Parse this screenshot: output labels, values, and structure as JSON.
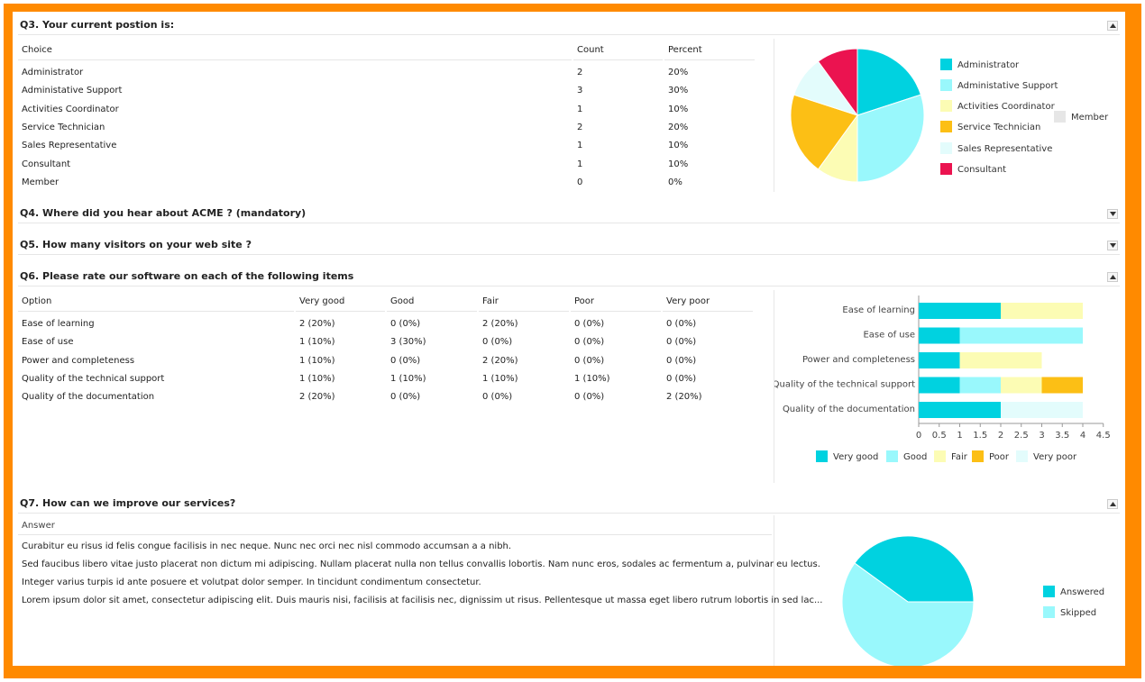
{
  "q3": {
    "title": "Q3. Your current postion is:",
    "headers": [
      "Choice",
      "Count",
      "Percent"
    ],
    "rows": [
      [
        "Administrator",
        "2",
        "20%"
      ],
      [
        "Administative Support",
        "3",
        "30%"
      ],
      [
        "Activities Coordinator",
        "1",
        "10%"
      ],
      [
        "Service Technician",
        "2",
        "20%"
      ],
      [
        "Sales Representative",
        "1",
        "10%"
      ],
      [
        "Consultant",
        "1",
        "10%"
      ],
      [
        "Member",
        "0",
        "0%"
      ]
    ]
  },
  "q4": {
    "title": "Q4. Where did you hear about ACME ? (mandatory)"
  },
  "q5": {
    "title": "Q5. How many visitors on your web site ?"
  },
  "q6": {
    "title": "Q6. Please rate our software on each of the following items",
    "headers": [
      "Option",
      "Very good",
      "Good",
      "Fair",
      "Poor",
      "Very poor"
    ],
    "rows": [
      [
        "Ease of learning",
        "2 (20%)",
        "0 (0%)",
        "2 (20%)",
        "0 (0%)",
        "0 (0%)"
      ],
      [
        "Ease of use",
        "1 (10%)",
        "3 (30%)",
        "0 (0%)",
        "0 (0%)",
        "0 (0%)"
      ],
      [
        "Power and completeness",
        "1 (10%)",
        "0 (0%)",
        "2 (20%)",
        "0 (0%)",
        "0 (0%)"
      ],
      [
        "Quality of the technical support",
        "1 (10%)",
        "1 (10%)",
        "1 (10%)",
        "1 (10%)",
        "0 (0%)"
      ],
      [
        "Quality of the documentation",
        "2 (20%)",
        "0 (0%)",
        "0 (0%)",
        "0 (0%)",
        "2 (20%)"
      ]
    ]
  },
  "q7": {
    "title": "Q7. How can we improve our services?",
    "answer_header": "Answer",
    "answers": [
      "Curabitur eu risus id felis congue facilisis in nec neque. Nunc nec orci nec nisl commodo accumsan a a nibh.",
      "Sed faucibus libero vitae justo placerat non dictum mi adipiscing. Nullam placerat nulla non tellus convallis lobortis. Nam nunc eros, sodales ac fermentum a, pulvinar eu lectus.",
      "Integer varius turpis id ante posuere et volutpat dolor semper. In tincidunt condimentum consectetur.",
      "Lorem ipsum dolor sit amet, consectetur adipiscing elit. Duis mauris nisi, facilisis at facilisis nec, dignissim ut risus. Pellentesque ut massa eget libero rutrum lobortis in sed lac..."
    ]
  },
  "colors": {
    "frame": "#ff8a00",
    "very_good": "#00d2e0",
    "good": "#99f8fc",
    "fair": "#fcfcb4",
    "poor": "#fcbf15",
    "very_poor": "#e3fcfc",
    "consultant": "#eb1350",
    "member": "#e6e6e6"
  },
  "chart_data": [
    {
      "type": "pie",
      "labels": [
        "Administrator",
        "Administative Support",
        "Activities Coordinator",
        "Service Technician",
        "Sales Representative",
        "Consultant",
        "Member"
      ],
      "values": [
        2,
        3,
        1,
        2,
        1,
        1,
        0
      ],
      "colors": [
        "#00d2e0",
        "#99f8fc",
        "#fcfcb4",
        "#fcbf15",
        "#e3fcfc",
        "#eb1350",
        "#e6e6e6"
      ],
      "legend": "right"
    },
    {
      "type": "bar",
      "orientation": "horizontal",
      "stacked": true,
      "categories": [
        "Ease of learning",
        "Ease of use",
        "Power and completeness",
        "Quality of the technical support",
        "Quality of the documentation"
      ],
      "series": [
        {
          "name": "Very good",
          "values": [
            2,
            1,
            1,
            1,
            2
          ],
          "color": "#00d2e0"
        },
        {
          "name": "Good",
          "values": [
            0,
            3,
            0,
            1,
            0
          ],
          "color": "#99f8fc"
        },
        {
          "name": "Fair",
          "values": [
            2,
            0,
            2,
            1,
            0
          ],
          "color": "#fcfcb4"
        },
        {
          "name": "Poor",
          "values": [
            0,
            0,
            0,
            1,
            0
          ],
          "color": "#fcbf15"
        },
        {
          "name": "Very poor",
          "values": [
            0,
            0,
            0,
            0,
            2
          ],
          "color": "#e3fcfc"
        }
      ],
      "xlim": [
        0,
        4.5
      ],
      "xticks": [
        "0",
        "0.5",
        "1",
        "1.5",
        "2",
        "2.5",
        "3",
        "3.5",
        "4",
        "4.5"
      ],
      "legend": "bottom"
    },
    {
      "type": "pie",
      "labels": [
        "Answered",
        "Skipped"
      ],
      "values": [
        4,
        6
      ],
      "colors": [
        "#00d2e0",
        "#99f8fc"
      ],
      "legend": "right"
    }
  ]
}
